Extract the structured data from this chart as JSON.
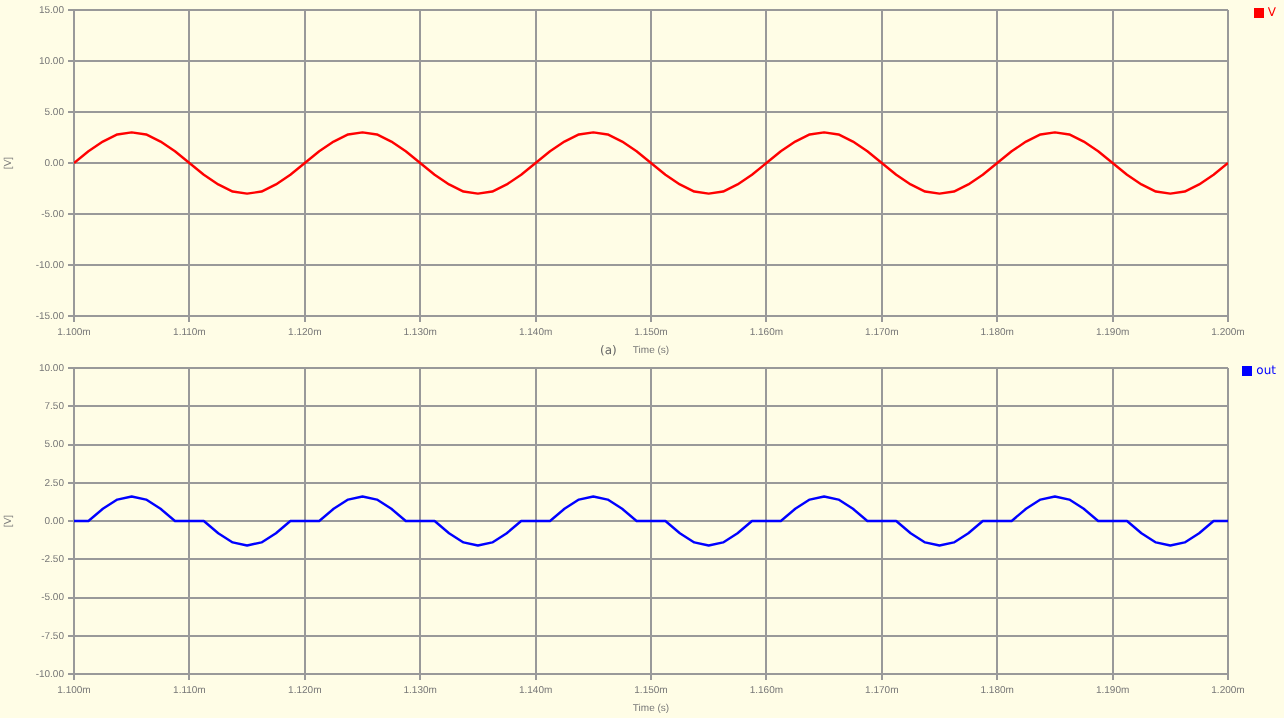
{
  "chart_data": [
    {
      "type": "line",
      "xlabel": "Time (s)",
      "ylabel": "[V]",
      "annotations": [
        "(a)"
      ],
      "legend": "top right",
      "grid": true,
      "marker": "none",
      "x": [
        1.1,
        1.10125,
        1.1025,
        1.10375,
        1.105,
        1.10625,
        1.1075,
        1.10875,
        1.11,
        1.11125,
        1.1125,
        1.11375,
        1.115,
        1.11625,
        1.1175,
        1.11875,
        1.12,
        1.12125,
        1.1225,
        1.12375,
        1.125,
        1.12625,
        1.1275,
        1.12875,
        1.13,
        1.13125,
        1.1325,
        1.13375,
        1.135,
        1.13625,
        1.1375,
        1.13875,
        1.14,
        1.14125,
        1.1425,
        1.14375,
        1.145,
        1.14625,
        1.1475,
        1.14875,
        1.15,
        1.15125,
        1.1525,
        1.15375,
        1.155,
        1.15625,
        1.1575,
        1.15875,
        1.16,
        1.16125,
        1.1625,
        1.16375,
        1.165,
        1.16625,
        1.1675,
        1.16875,
        1.17,
        1.17125,
        1.1725,
        1.17375,
        1.175,
        1.17625,
        1.1775,
        1.17875,
        1.18,
        1.18125,
        1.1825,
        1.18375,
        1.185,
        1.18625,
        1.1875,
        1.18875,
        1.19,
        1.19125,
        1.1925,
        1.19375,
        1.195,
        1.19625,
        1.1975,
        1.19875,
        1.2
      ],
      "series": [
        {
          "name": "V",
          "color": "#ff0000",
          "values": [
            0,
            1.15,
            2.1,
            2.8,
            3,
            2.8,
            2.1,
            1.15,
            0,
            -1.15,
            -2.1,
            -2.8,
            -3,
            -2.8,
            -2.1,
            -1.15,
            0,
            1.15,
            2.1,
            2.8,
            3,
            2.8,
            2.1,
            1.15,
            0,
            -1.15,
            -2.1,
            -2.8,
            -3,
            -2.8,
            -2.1,
            -1.15,
            0,
            1.15,
            2.1,
            2.8,
            3,
            2.8,
            2.1,
            1.15,
            0,
            -1.15,
            -2.1,
            -2.8,
            -3,
            -2.8,
            -2.1,
            -1.15,
            0,
            1.15,
            2.1,
            2.8,
            3,
            2.8,
            2.1,
            1.15,
            0,
            -1.15,
            -2.1,
            -2.8,
            -3,
            -2.8,
            -2.1,
            -1.15,
            0,
            1.15,
            2.1,
            2.8,
            3,
            2.8,
            2.1,
            1.15,
            0,
            -1.15,
            -2.1,
            -2.8,
            -3,
            -2.8,
            -2.1,
            -1.15,
            0
          ]
        }
      ],
      "xlim": [
        1.1,
        1.2
      ],
      "xticks": [
        {
          "value": 1.1,
          "label": "1.100m"
        },
        {
          "value": 1.11,
          "label": "1.110m"
        },
        {
          "value": 1.12,
          "label": "1.120m"
        },
        {
          "value": 1.13,
          "label": "1.130m"
        },
        {
          "value": 1.14,
          "label": "1.140m"
        },
        {
          "value": 1.15,
          "label": "1.150m"
        },
        {
          "value": 1.16,
          "label": "1.160m"
        },
        {
          "value": 1.17,
          "label": "1.170m"
        },
        {
          "value": 1.18,
          "label": "1.180m"
        },
        {
          "value": 1.19,
          "label": "1.190m"
        },
        {
          "value": 1.2,
          "label": "1.200m"
        }
      ],
      "ylim": [
        -15,
        15
      ],
      "yticks": [
        {
          "value": -15,
          "label": "-15.00"
        },
        {
          "value": -10,
          "label": "-10.00"
        },
        {
          "value": -5,
          "label": "-5.00"
        },
        {
          "value": 0,
          "label": "0.00"
        },
        {
          "value": 5,
          "label": "5.00"
        },
        {
          "value": 10,
          "label": "10.00"
        },
        {
          "value": 15,
          "label": "15.00"
        }
      ]
    },
    {
      "type": "line",
      "xlabel": "Time (s)",
      "ylabel": "[V]",
      "legend": "top right",
      "grid": true,
      "marker": "none",
      "x": [
        1.1,
        1.10125,
        1.1025,
        1.10375,
        1.105,
        1.10625,
        1.1075,
        1.10875,
        1.11,
        1.11125,
        1.1125,
        1.11375,
        1.115,
        1.11625,
        1.1175,
        1.11875,
        1.12,
        1.12125,
        1.1225,
        1.12375,
        1.125,
        1.12625,
        1.1275,
        1.12875,
        1.13,
        1.13125,
        1.1325,
        1.13375,
        1.135,
        1.13625,
        1.1375,
        1.13875,
        1.14,
        1.14125,
        1.1425,
        1.14375,
        1.145,
        1.14625,
        1.1475,
        1.14875,
        1.15,
        1.15125,
        1.1525,
        1.15375,
        1.155,
        1.15625,
        1.1575,
        1.15875,
        1.16,
        1.16125,
        1.1625,
        1.16375,
        1.165,
        1.16625,
        1.1675,
        1.16875,
        1.17,
        1.17125,
        1.1725,
        1.17375,
        1.175,
        1.17625,
        1.1775,
        1.17875,
        1.18,
        1.18125,
        1.1825,
        1.18375,
        1.185,
        1.18625,
        1.1875,
        1.18875,
        1.19,
        1.19125,
        1.1925,
        1.19375,
        1.195,
        1.19625,
        1.1975,
        1.19875,
        1.2
      ],
      "series": [
        {
          "name": "out",
          "color": "#0000ff",
          "values": [
            0,
            0,
            0.8,
            1.4,
            1.6,
            1.4,
            0.8,
            0,
            0,
            0,
            -0.8,
            -1.4,
            -1.6,
            -1.4,
            -0.8,
            0,
            0,
            0,
            0.8,
            1.4,
            1.6,
            1.4,
            0.8,
            0,
            0,
            0,
            -0.8,
            -1.4,
            -1.6,
            -1.4,
            -0.8,
            0,
            0,
            0,
            0.8,
            1.4,
            1.6,
            1.4,
            0.8,
            0,
            0,
            0,
            -0.8,
            -1.4,
            -1.6,
            -1.4,
            -0.8,
            0,
            0,
            0,
            0.8,
            1.4,
            1.6,
            1.4,
            0.8,
            0,
            0,
            0,
            -0.8,
            -1.4,
            -1.6,
            -1.4,
            -0.8,
            0,
            0,
            0,
            0.8,
            1.4,
            1.6,
            1.4,
            0.8,
            0,
            0,
            0,
            -0.8,
            -1.4,
            -1.6,
            -1.4,
            -0.8,
            0,
            0
          ]
        }
      ],
      "xlim": [
        1.1,
        1.2
      ],
      "xticks": [
        {
          "value": 1.1,
          "label": "1.100m"
        },
        {
          "value": 1.11,
          "label": "1.110m"
        },
        {
          "value": 1.12,
          "label": "1.120m"
        },
        {
          "value": 1.13,
          "label": "1.130m"
        },
        {
          "value": 1.14,
          "label": "1.140m"
        },
        {
          "value": 1.15,
          "label": "1.150m"
        },
        {
          "value": 1.16,
          "label": "1.160m"
        },
        {
          "value": 1.17,
          "label": "1.170m"
        },
        {
          "value": 1.18,
          "label": "1.180m"
        },
        {
          "value": 1.19,
          "label": "1.190m"
        },
        {
          "value": 1.2,
          "label": "1.200m"
        }
      ],
      "ylim": [
        -10,
        10
      ],
      "yticks": [
        {
          "value": -10,
          "label": "-10.00"
        },
        {
          "value": -7.5,
          "label": "-7.50"
        },
        {
          "value": -5,
          "label": "-5.00"
        },
        {
          "value": -2.5,
          "label": "-2.50"
        },
        {
          "value": 0,
          "label": "0.00"
        },
        {
          "value": 2.5,
          "label": "2.50"
        },
        {
          "value": 5,
          "label": "5.00"
        },
        {
          "value": 7.5,
          "label": "7.50"
        },
        {
          "value": 10,
          "label": "10.00"
        }
      ]
    }
  ]
}
